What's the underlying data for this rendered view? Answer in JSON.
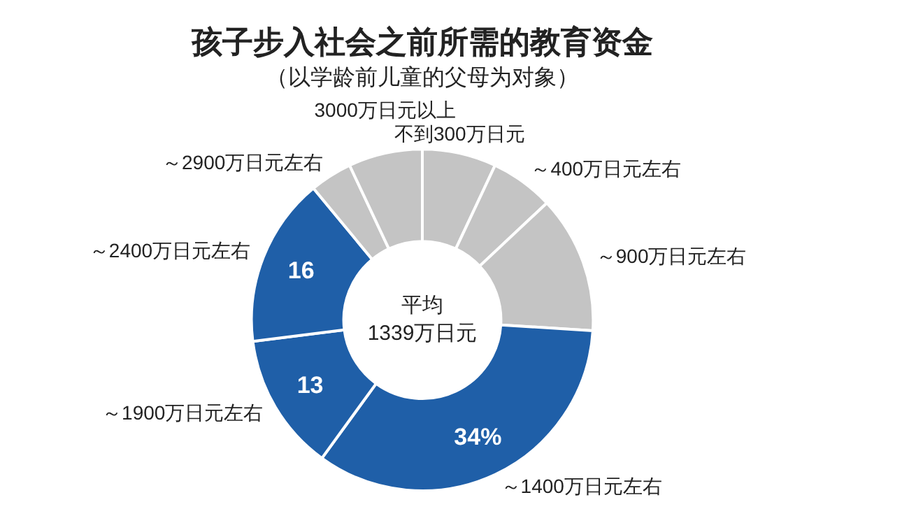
{
  "chart_data": {
    "type": "donut",
    "title": "孩子步入社会之前所需的教育资金",
    "subtitle": "（以学龄前儿童的父母为对象）",
    "categories": [
      "不到300万日元",
      "～400万日元左右",
      "～900万日元左右",
      "～1400万日元左右",
      "～1900万日元左右",
      "～2400万日元左右",
      "～2900万日元左右",
      "3000万日元以上"
    ],
    "values": [
      7,
      6,
      13,
      34,
      13,
      16,
      4,
      7
    ],
    "colors": [
      "#c4c4c4",
      "#c4c4c4",
      "#c4c4c4",
      "#1f5fa8",
      "#1f5fa8",
      "#1f5fa8",
      "#c4c4c4",
      "#c4c4c4"
    ],
    "value_labels": [
      null,
      null,
      null,
      "34%",
      "13",
      "16",
      null,
      null
    ],
    "annotations": [
      "平均",
      "1339万日元"
    ],
    "legend": false
  }
}
